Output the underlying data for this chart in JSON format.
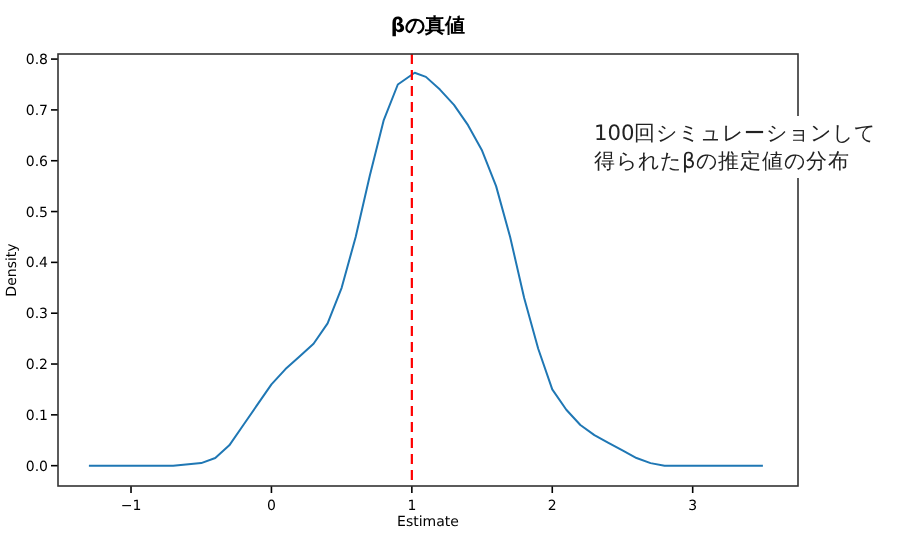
{
  "chart_data": {
    "type": "line",
    "title": "βの真値",
    "xlabel": "Estimate",
    "ylabel": "Density",
    "annotations": [
      "100回シミュレーションして得られたβの推定値の分布"
    ],
    "xlim": [
      -1.52,
      3.75
    ],
    "ylim": [
      -0.04,
      0.81
    ],
    "xticks": [
      {
        "value": -1,
        "label": "−1"
      },
      0,
      1,
      2,
      3
    ],
    "yticks": [
      {
        "value": 0,
        "label": "0.0"
      },
      0.1,
      0.2,
      0.3,
      0.4,
      0.5,
      0.6,
      0.7,
      0.8
    ],
    "ref_lines": [
      {
        "axis": "x",
        "value": 1,
        "color": "#ff0000",
        "line_style": "dashed"
      }
    ],
    "series": [
      {
        "color": "#1f77b4",
        "x": [
          -1.3,
          -0.7,
          -0.5,
          -0.4,
          -0.3,
          -0.2,
          -0.1,
          0,
          0.1,
          0.2,
          0.3,
          0.4,
          0.5,
          0.6,
          0.7,
          0.8,
          0.9,
          1.02,
          1.1,
          1.2,
          1.3,
          1.4,
          1.5,
          1.6,
          1.7,
          1.8,
          1.9,
          2.0,
          2.1,
          2.2,
          2.3,
          2.4,
          2.5,
          2.6,
          2.7,
          2.8,
          3.5
        ],
        "values": [
          0,
          0,
          0.005,
          0.015,
          0.04,
          0.08,
          0.12,
          0.16,
          0.19,
          0.215,
          0.24,
          0.28,
          0.35,
          0.45,
          0.57,
          0.68,
          0.75,
          0.773,
          0.765,
          0.74,
          0.71,
          0.67,
          0.62,
          0.55,
          0.45,
          0.33,
          0.23,
          0.15,
          0.11,
          0.08,
          0.06,
          0.045,
          0.03,
          0.015,
          0.005,
          0,
          0
        ]
      }
    ]
  }
}
